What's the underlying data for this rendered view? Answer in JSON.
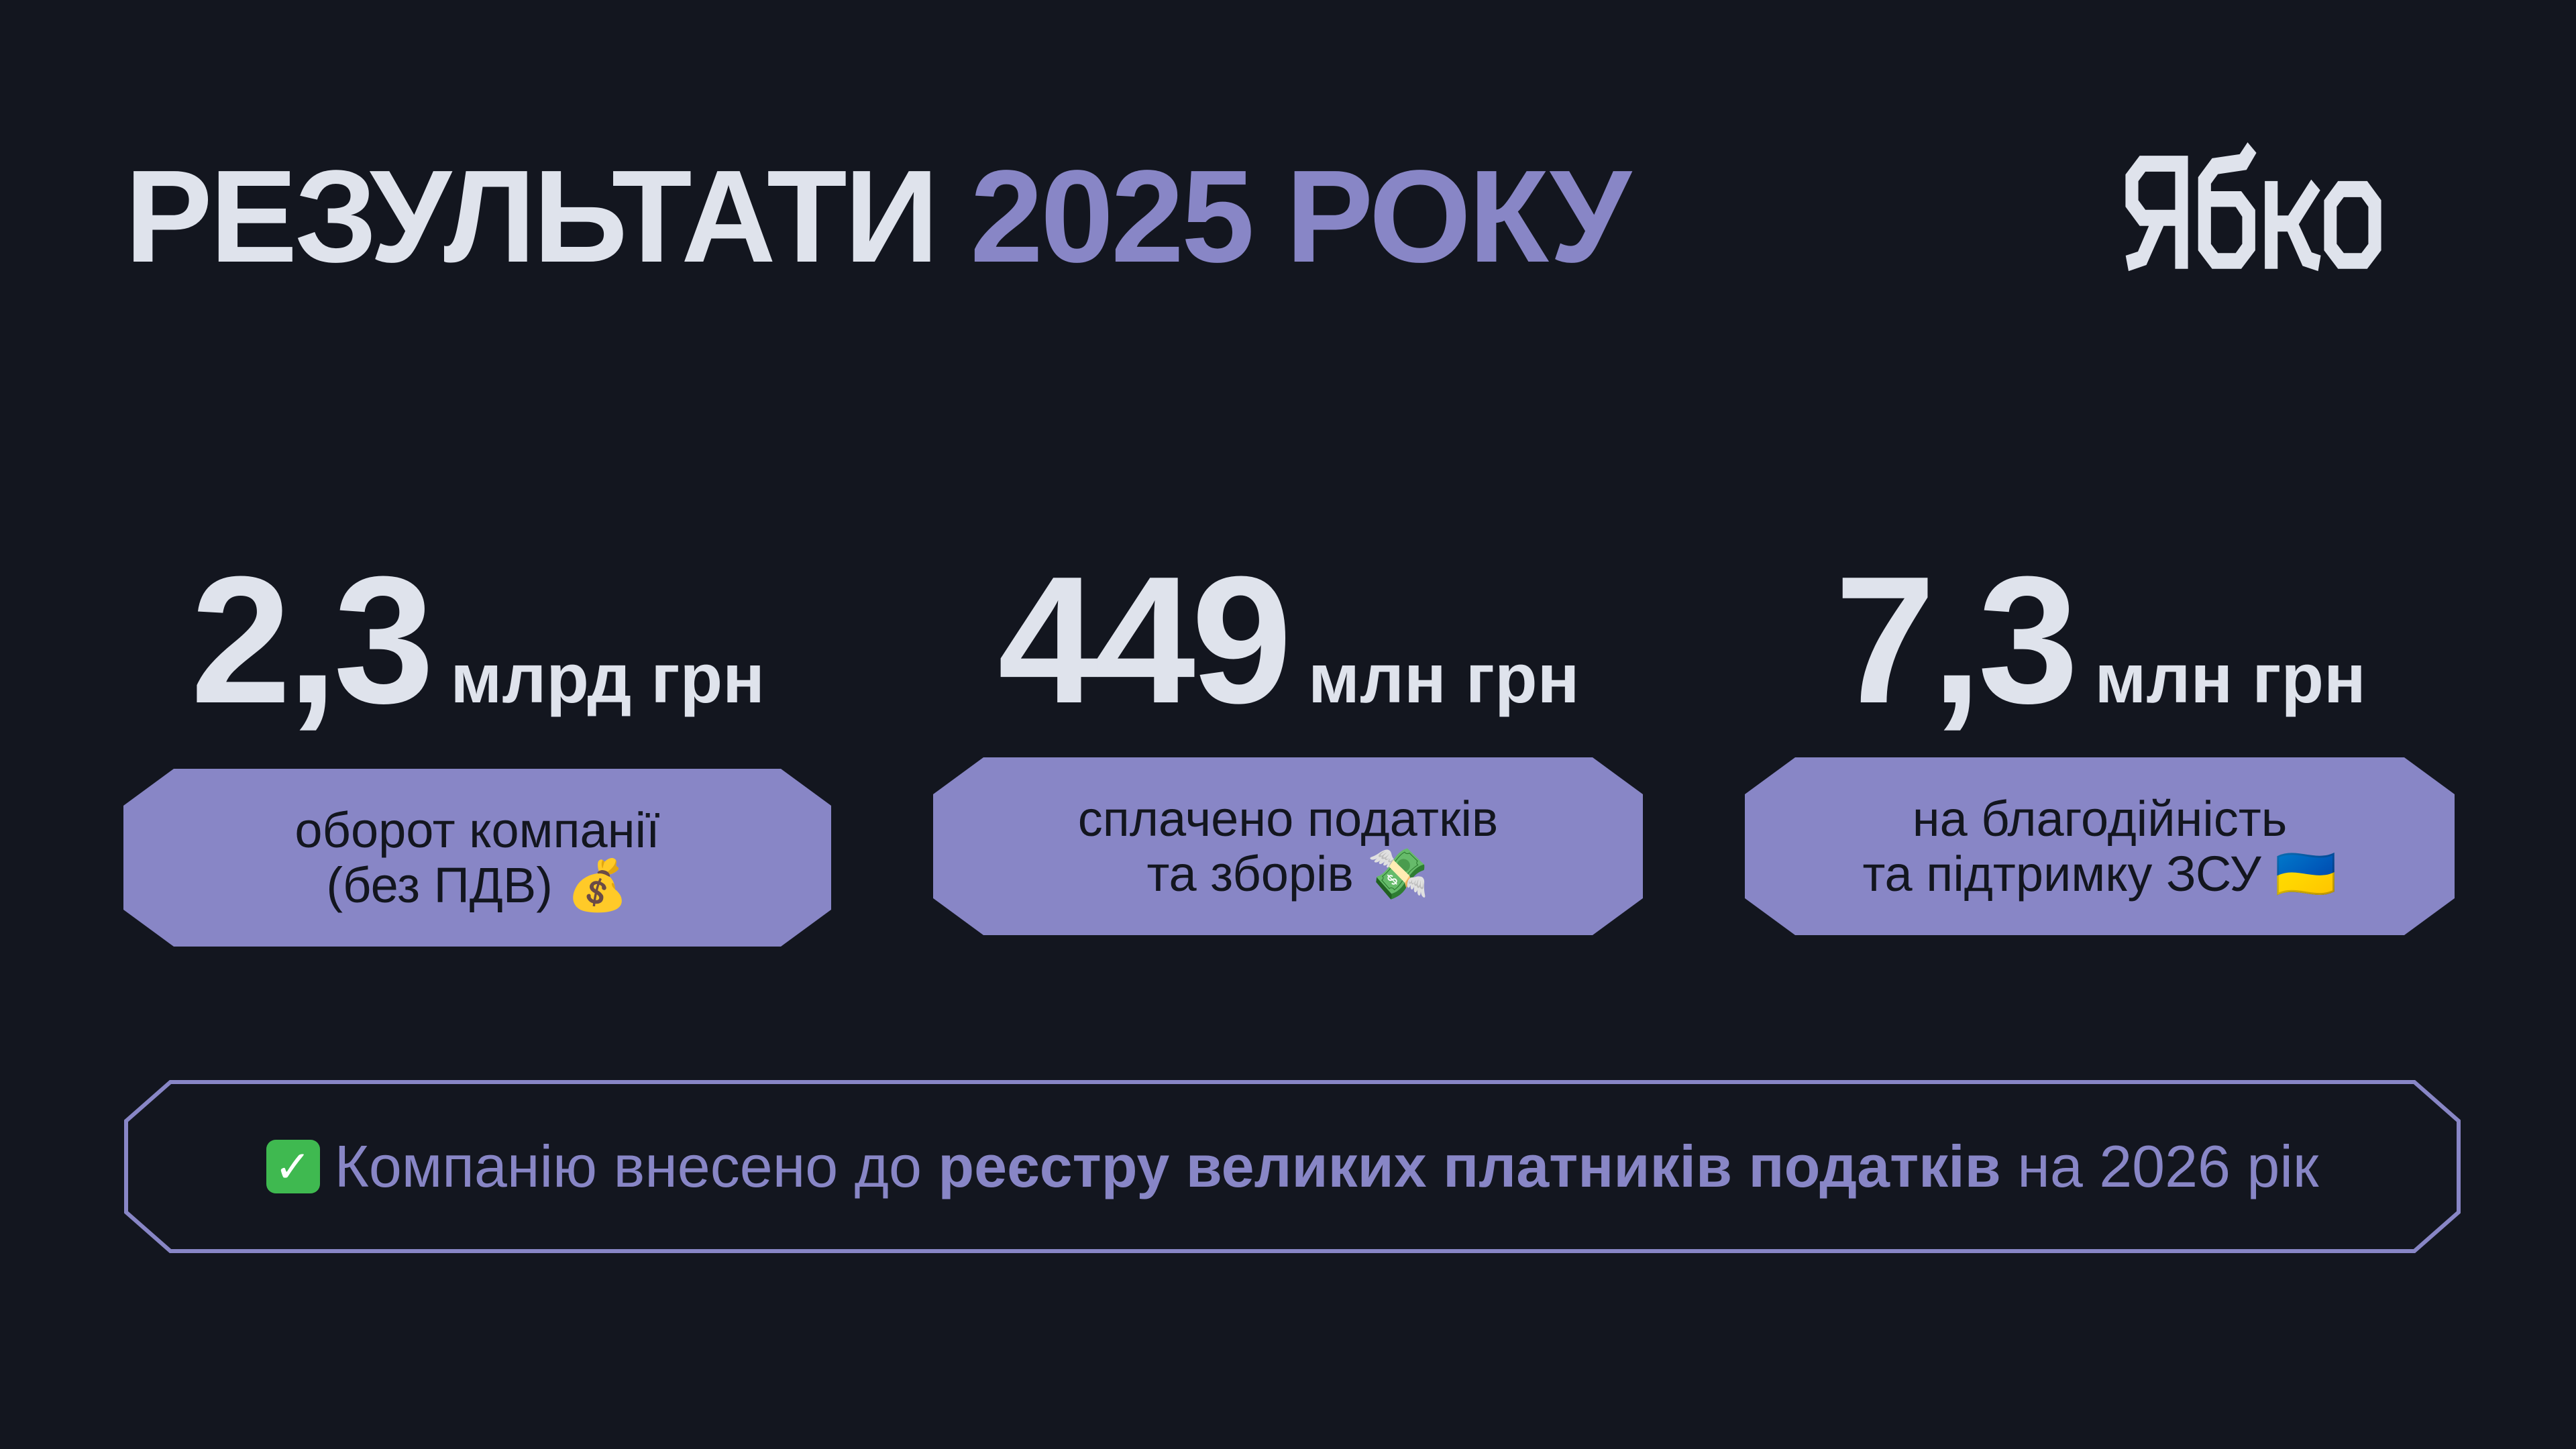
{
  "header": {
    "title_main": "РЕЗУЛЬТАТИ",
    "title_accent": "2025 РОКУ",
    "logo_text": "Ябко"
  },
  "stats": [
    {
      "value": "2,3",
      "unit": "млрд грн",
      "label_line1": "оборот компанії",
      "label_line2": "(без ПДВ)",
      "emoji": "💰"
    },
    {
      "value": "449",
      "unit": "млн грн",
      "label_line1": "сплачено податків",
      "label_line2": "та зборів",
      "emoji": "💸"
    },
    {
      "value": "7,3",
      "unit": "млн грн",
      "label_line1": "на благодійність",
      "label_line2": "та підтримку ЗСУ",
      "emoji": "🇺🇦"
    }
  ],
  "banner": {
    "check_icon": "✓",
    "text_before": "Компанію внесено до",
    "text_bold": "реєстру великих платників податків",
    "text_after": "на 2026 рік"
  },
  "colors": {
    "background": "#13161f",
    "accent": "#8886c6",
    "text": "#dfe3ec"
  }
}
